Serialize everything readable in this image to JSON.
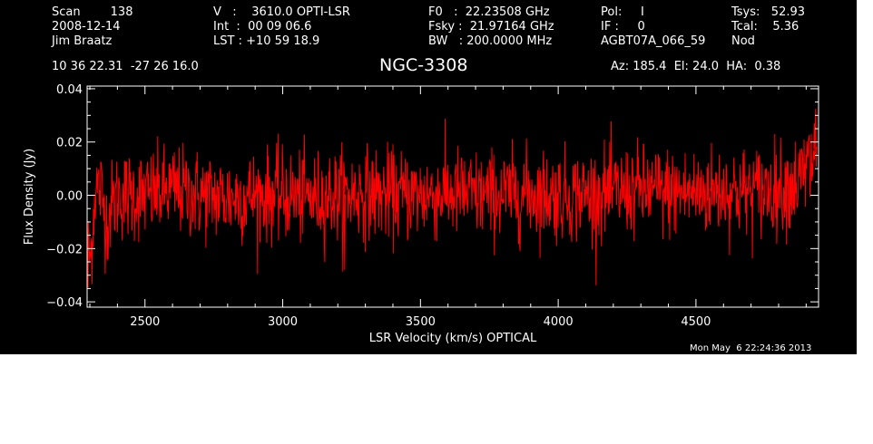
{
  "header": {
    "col1": [
      "Scan        138",
      "2008-12-14",
      "Jim Braatz"
    ],
    "col2": [
      "V   :    3610.0 OPTI-LSR",
      "Int  :  00 09 06.6",
      "LST : +10 59 18.9"
    ],
    "col3": [
      "F0   :  22.23508 GHz",
      "Fsky :  21.97164 GHz",
      "BW   : 200.0000 MHz"
    ],
    "col4": [
      "Pol:     I",
      "IF :     0",
      "AGBT07A_066_59"
    ],
    "col5": [
      "Tsys:   52.93",
      "Tcal:    5.36",
      "Nod"
    ],
    "coords": "10 36 22.31  -27 26 16.0",
    "source": "NGC-3308",
    "azel": "Az: 185.4  El: 24.0  HA:  0.38",
    "timestamp": "Mon May  6 22:24:36 2013"
  },
  "colors": {
    "background": "#000000",
    "trace": "#ff0000",
    "axes": "#ffffff"
  },
  "chart_data": {
    "type": "line",
    "title": "NGC-3308",
    "xlabel": "LSR Velocity (km/s) OPTICAL",
    "ylabel": "Flux Density (Jy)",
    "xlim": [
      2290,
      4945
    ],
    "ylim": [
      -0.042,
      0.041
    ],
    "xticks": [
      2500,
      3000,
      3500,
      4000,
      4500
    ],
    "xtick_labels": [
      "2500",
      "3000",
      "3500",
      "4000",
      "4500"
    ],
    "yticks": [
      -0.04,
      -0.02,
      0.0,
      0.02,
      0.04
    ],
    "ytick_labels": [
      "−0.04",
      "−0.02",
      "0.00",
      "0.02",
      "0.04"
    ],
    "grid": false,
    "series": [
      {
        "color": "#ff0000",
        "x_range": [
          2290,
          4940
        ],
        "noise_rms_jy": 0.0085,
        "points": [
          [
            2290,
            -0.008
          ],
          [
            2293,
            -0.034
          ],
          [
            2296,
            -0.018
          ],
          [
            2302,
            -0.025
          ],
          [
            2310,
            -0.012
          ],
          [
            2320,
            0.003
          ],
          [
            2340,
            0.002
          ],
          [
            2360,
            -0.01
          ],
          [
            2380,
            -0.004
          ],
          [
            2400,
            0.0
          ],
          [
            2500,
            0.0
          ],
          [
            2600,
            0.002
          ],
          [
            2700,
            0.0
          ],
          [
            2800,
            -0.001
          ],
          [
            2900,
            0.0
          ],
          [
            3000,
            0.0
          ],
          [
            3100,
            -0.001
          ],
          [
            3200,
            0.0
          ],
          [
            3300,
            0.001
          ],
          [
            3400,
            0.0
          ],
          [
            3500,
            0.0
          ],
          [
            3600,
            0.001
          ],
          [
            3700,
            0.0
          ],
          [
            3800,
            0.0
          ],
          [
            3900,
            0.001
          ],
          [
            4000,
            0.0
          ],
          [
            4100,
            0.0
          ],
          [
            4200,
            0.001
          ],
          [
            4300,
            0.002
          ],
          [
            4400,
            0.001
          ],
          [
            4500,
            0.001
          ],
          [
            4600,
            0.002
          ],
          [
            4700,
            0.001
          ],
          [
            4800,
            0.003
          ],
          [
            4880,
            0.005
          ],
          [
            4920,
            0.012
          ],
          [
            4935,
            0.02
          ],
          [
            4940,
            0.01
          ]
        ]
      }
    ],
    "notable_extremes": [
      {
        "x": 2293,
        "y": -0.034
      },
      {
        "x": 3225,
        "y": -0.028
      },
      {
        "x": 4930,
        "y": 0.027
      }
    ]
  }
}
